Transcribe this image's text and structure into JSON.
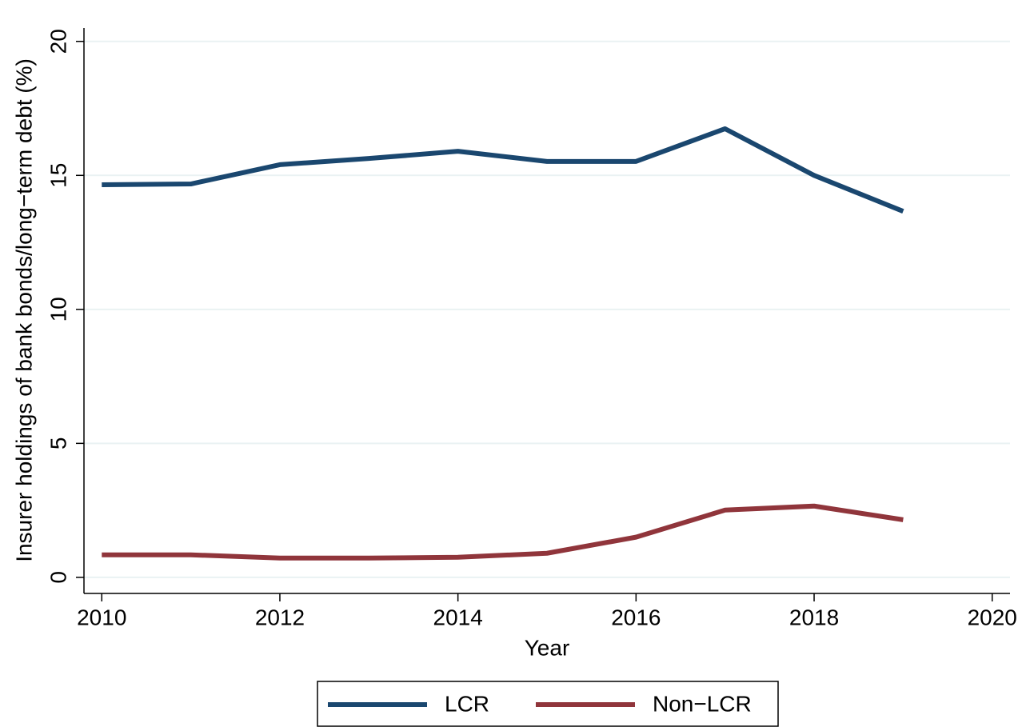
{
  "chart_data": {
    "type": "line",
    "x_label": "Year",
    "y_label": "Insurer holdings of bank bonds/long−term debt (%)",
    "x": [
      2010,
      2011,
      2012,
      2013,
      2014,
      2015,
      2016,
      2017,
      2018,
      2019
    ],
    "series": [
      {
        "name": "LCR",
        "color": "#1a476f",
        "values": [
          14.65,
          14.68,
          15.4,
          15.63,
          15.9,
          15.52,
          15.52,
          16.74,
          15.0,
          13.66
        ]
      },
      {
        "name": "Non−LCR",
        "color": "#90353b",
        "values": [
          0.84,
          0.84,
          0.72,
          0.72,
          0.75,
          0.9,
          1.5,
          2.51,
          2.66,
          2.15
        ]
      }
    ],
    "xlim": [
      2009.8,
      2020.2
    ],
    "xticks": [
      2010,
      2012,
      2014,
      2016,
      2018,
      2020
    ],
    "ylim": [
      -0.6,
      20.5
    ],
    "yticks": [
      0,
      5,
      10,
      15,
      20
    ],
    "grid": true,
    "legend": "bottom"
  }
}
